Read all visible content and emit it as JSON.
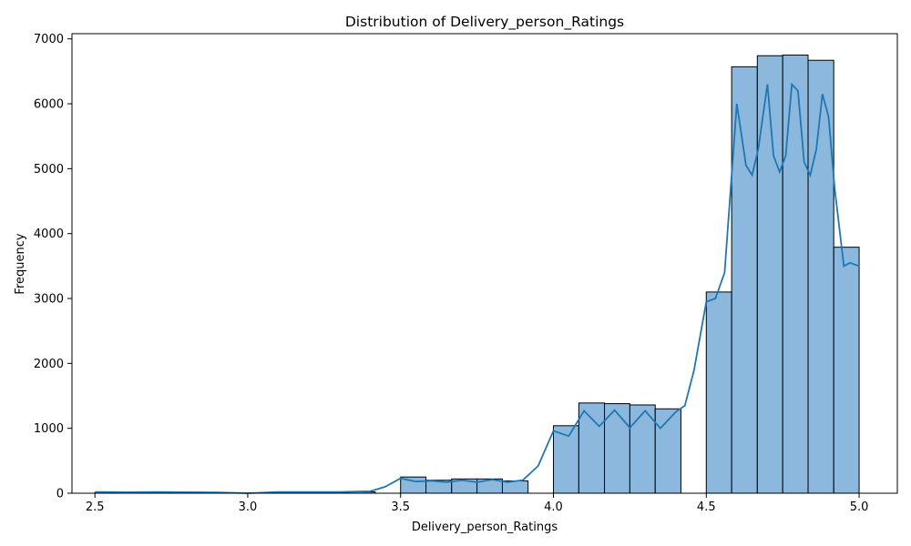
{
  "chart_data": {
    "type": "bar",
    "subtype": "histogram-with-kde",
    "title": "Distribution of Delivery_person_Ratings",
    "xlabel": "Delivery_person_Ratings",
    "ylabel": "Frequency",
    "xlim": [
      2.425,
      5.125
    ],
    "ylim": [
      0,
      7080
    ],
    "xticks": [
      2.5,
      3.0,
      3.5,
      4.0,
      4.5,
      5.0
    ],
    "xtick_labels": [
      "2.5",
      "3.0",
      "3.5",
      "4.0",
      "4.5",
      "5.0"
    ],
    "yticks": [
      0,
      1000,
      2000,
      3000,
      4000,
      5000,
      6000,
      7000
    ],
    "ytick_labels": [
      "0",
      "1000",
      "2000",
      "3000",
      "4000",
      "5000",
      "6000",
      "7000"
    ],
    "grid": false,
    "bin_start": 2.5,
    "bin_width": 0.0833,
    "bins": [
      {
        "left": 2.5,
        "right": 2.583,
        "count": 10
      },
      {
        "left": 2.583,
        "right": 2.667,
        "count": 10
      },
      {
        "left": 2.667,
        "right": 2.75,
        "count": 10
      },
      {
        "left": 2.75,
        "right": 2.833,
        "count": 10
      },
      {
        "left": 2.833,
        "right": 2.917,
        "count": 10
      },
      {
        "left": 2.917,
        "right": 3.0,
        "count": 0
      },
      {
        "left": 3.0,
        "right": 3.083,
        "count": 0
      },
      {
        "left": 3.083,
        "right": 3.167,
        "count": 15
      },
      {
        "left": 3.167,
        "right": 3.25,
        "count": 15
      },
      {
        "left": 3.25,
        "right": 3.333,
        "count": 15
      },
      {
        "left": 3.333,
        "right": 3.417,
        "count": 20
      },
      {
        "left": 3.417,
        "right": 3.5,
        "count": 0
      },
      {
        "left": 3.5,
        "right": 3.583,
        "count": 250
      },
      {
        "left": 3.583,
        "right": 3.667,
        "count": 200
      },
      {
        "left": 3.667,
        "right": 3.75,
        "count": 220
      },
      {
        "left": 3.75,
        "right": 3.833,
        "count": 220
      },
      {
        "left": 3.833,
        "right": 3.917,
        "count": 190
      },
      {
        "left": 3.917,
        "right": 4.0,
        "count": 0
      },
      {
        "left": 4.0,
        "right": 4.083,
        "count": 1040
      },
      {
        "left": 4.083,
        "right": 4.167,
        "count": 1390
      },
      {
        "left": 4.167,
        "right": 4.25,
        "count": 1380
      },
      {
        "left": 4.25,
        "right": 4.333,
        "count": 1360
      },
      {
        "left": 4.333,
        "right": 4.417,
        "count": 1300
      },
      {
        "left": 4.417,
        "right": 4.5,
        "count": 0
      },
      {
        "left": 4.5,
        "right": 4.583,
        "count": 3100
      },
      {
        "left": 4.583,
        "right": 4.667,
        "count": 6570
      },
      {
        "left": 4.667,
        "right": 4.75,
        "count": 6740
      },
      {
        "left": 4.75,
        "right": 4.833,
        "count": 6750
      },
      {
        "left": 4.833,
        "right": 4.917,
        "count": 6670
      },
      {
        "left": 4.917,
        "right": 5.0,
        "count": 3790
      }
    ],
    "kde": {
      "x": [
        2.5,
        2.6,
        2.7,
        2.8,
        2.9,
        3.0,
        3.1,
        3.2,
        3.3,
        3.4,
        3.45,
        3.5,
        3.55,
        3.6,
        3.65,
        3.7,
        3.75,
        3.8,
        3.85,
        3.9,
        3.95,
        4.0,
        4.05,
        4.1,
        4.15,
        4.2,
        4.25,
        4.3,
        4.35,
        4.4,
        4.43,
        4.46,
        4.5,
        4.53,
        4.56,
        4.6,
        4.63,
        4.65,
        4.67,
        4.7,
        4.72,
        4.74,
        4.76,
        4.78,
        4.8,
        4.82,
        4.84,
        4.86,
        4.88,
        4.9,
        4.92,
        4.95,
        4.97,
        5.0
      ],
      "y": [
        20,
        15,
        18,
        15,
        12,
        0,
        20,
        20,
        20,
        30,
        100,
        230,
        180,
        190,
        170,
        200,
        170,
        210,
        170,
        200,
        420,
        960,
        880,
        1270,
        1030,
        1280,
        1010,
        1270,
        1000,
        1250,
        1350,
        1900,
        2950,
        3000,
        3400,
        6000,
        5050,
        4900,
        5300,
        6300,
        5200,
        4950,
        5200,
        6300,
        6200,
        5100,
        4900,
        5300,
        6150,
        5800,
        4700,
        3500,
        3550,
        3500
      ]
    },
    "colors": {
      "bar_fill": "#8bb8dc",
      "bar_edge": "#000000",
      "kde_line": "#1f77b4",
      "axes": "#000000",
      "background": "#ffffff"
    }
  }
}
